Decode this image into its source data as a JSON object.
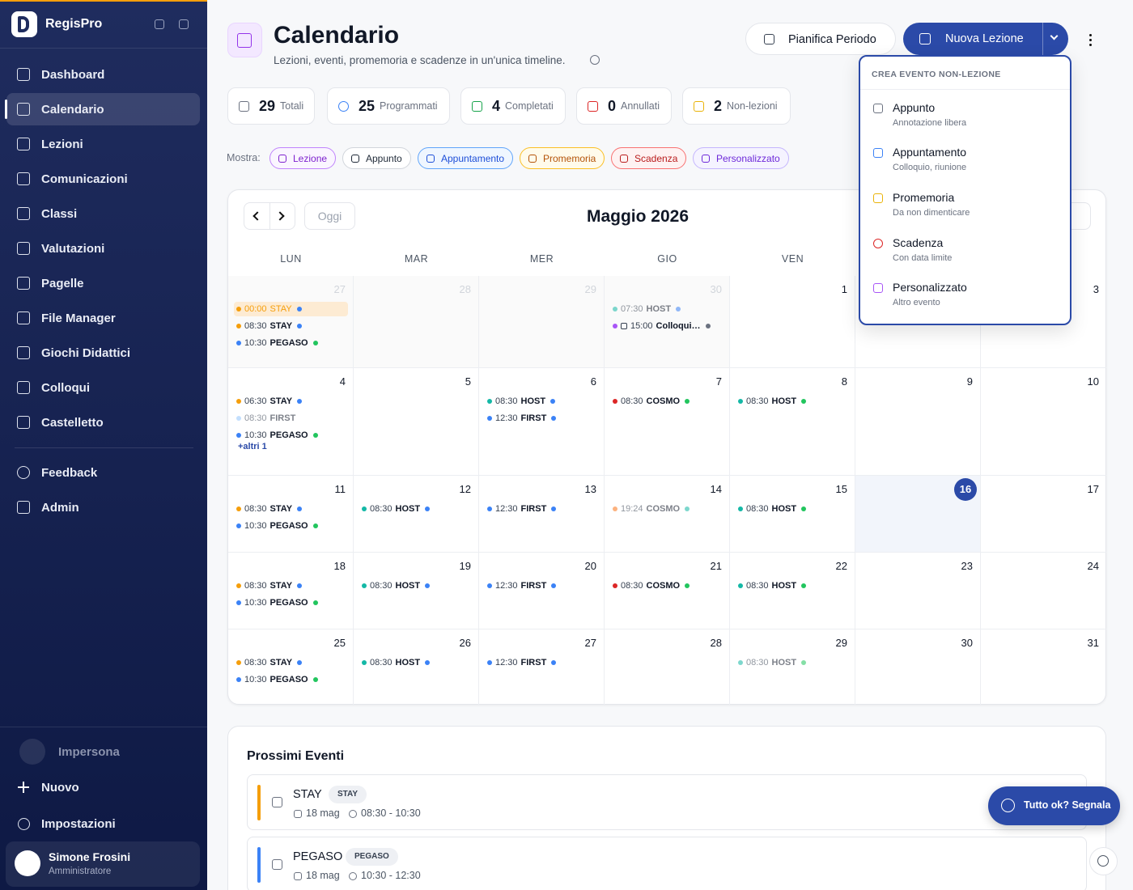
{
  "sidebar": {
    "brand": "RegisPro",
    "nav": [
      "Dashboard",
      "Calendario",
      "Lezioni",
      "Comunicazioni",
      "Classi",
      "Valutazioni",
      "Pagelle",
      "File Manager",
      "Giochi Didattici",
      "Colloqui",
      "Castelletto"
    ],
    "nav2": [
      "Feedback",
      "Admin"
    ],
    "impersonate": "Impersona",
    "new": "Nuovo",
    "settings": "Impostazioni",
    "user": {
      "name": "Simone Frosini",
      "role": "Amministratore"
    }
  },
  "header": {
    "title": "Calendario",
    "subtitle": "Lezioni, eventi, promemoria e scadenze in un'unica timeline.",
    "plan": "Pianifica Periodo",
    "new_lesson": "Nuova Lezione"
  },
  "stats": [
    {
      "value": 29,
      "label": "Totali",
      "color": "#6b7280"
    },
    {
      "value": 25,
      "label": "Programmati",
      "color": "#3b82f6"
    },
    {
      "value": 4,
      "label": "Completati",
      "color": "#16a34a"
    },
    {
      "value": 0,
      "label": "Annullati",
      "color": "#dc2626"
    },
    {
      "value": 2,
      "label": "Non-lezioni",
      "color": "#eab308"
    }
  ],
  "filters": {
    "label": "Mostra:",
    "chips": [
      {
        "label": "Lezione",
        "color": "#7e22ce",
        "bg": "#faf5ff",
        "border": "#c084fc"
      },
      {
        "label": "Appunto",
        "color": "#1f2937",
        "bg": "#ffffff",
        "border": "#d1d5db"
      },
      {
        "label": "Appuntamento",
        "color": "#1d4ed8",
        "bg": "#eff6ff",
        "border": "#60a5fa"
      },
      {
        "label": "Promemoria",
        "color": "#b45309",
        "bg": "#fffbeb",
        "border": "#fbbf24"
      },
      {
        "label": "Scadenza",
        "color": "#b91c1c",
        "bg": "#fef2f2",
        "border": "#f87171"
      },
      {
        "label": "Personalizzato",
        "color": "#6d28d9",
        "bg": "#f5f3ff",
        "border": "#c4b5fd"
      }
    ]
  },
  "calendar": {
    "month": "Maggio 2026",
    "today_btn": "Oggi",
    "weekdays": [
      "LUN",
      "MAR",
      "MER",
      "GIO",
      "VEN"
    ],
    "today": 16,
    "weeks": [
      [
        {
          "day": 27,
          "outside": true,
          "events": [
            {
              "time": "00:00",
              "name": "STAY",
              "lead": "#f59e0b",
              "trail": "#3b82f6",
              "muted": true,
              "highlight": true
            },
            {
              "time": "08:30",
              "name": "STAY",
              "lead": "#f59e0b",
              "trail": "#3b82f6"
            },
            {
              "time": "10:30",
              "name": "PEGASO",
              "lead": "#3b82f6",
              "trail": "#22c55e"
            }
          ]
        },
        {
          "day": 28,
          "outside": true
        },
        {
          "day": 29,
          "outside": true
        },
        {
          "day": 30,
          "outside": true,
          "events": [
            {
              "time": "07:30",
              "name": "HOST",
              "lead": "#14b8a6",
              "trail": "#3b82f6",
              "muted": true
            },
            {
              "time": "15:00",
              "name": "Colloqui…",
              "lead": "#a855f7",
              "trail": "#6b7280",
              "icon": true
            }
          ]
        },
        {
          "day": 1
        },
        {
          "day": null
        },
        {
          "day": 3
        }
      ],
      [
        {
          "day": 4,
          "events": [
            {
              "time": "06:30",
              "name": "STAY",
              "lead": "#f59e0b",
              "trail": "#3b82f6"
            },
            {
              "time": "08:30",
              "name": "FIRST",
              "lead": "#93c5fd",
              "trail": null,
              "muted": true
            },
            {
              "time": "10:30",
              "name": "PEGASO",
              "lead": "#3b82f6",
              "trail": "#22c55e"
            }
          ],
          "more": "+altri 1"
        },
        {
          "day": 5
        },
        {
          "day": 6,
          "events": [
            {
              "time": "08:30",
              "name": "HOST",
              "lead": "#14b8a6",
              "trail": "#3b82f6"
            },
            {
              "time": "12:30",
              "name": "FIRST",
              "lead": "#3b82f6",
              "trail": "#3b82f6"
            }
          ]
        },
        {
          "day": 7,
          "events": [
            {
              "time": "08:30",
              "name": "COSMO",
              "lead": "#dc2626",
              "trail": "#22c55e"
            }
          ]
        },
        {
          "day": 8,
          "events": [
            {
              "time": "08:30",
              "name": "HOST",
              "lead": "#14b8a6",
              "trail": "#22c55e"
            }
          ]
        },
        {
          "day": 9
        },
        {
          "day": 10
        }
      ],
      [
        {
          "day": 11,
          "events": [
            {
              "time": "08:30",
              "name": "STAY",
              "lead": "#f59e0b",
              "trail": "#3b82f6"
            },
            {
              "time": "10:30",
              "name": "PEGASO",
              "lead": "#3b82f6",
              "trail": "#22c55e"
            }
          ]
        },
        {
          "day": 12,
          "events": [
            {
              "time": "08:30",
              "name": "HOST",
              "lead": "#14b8a6",
              "trail": "#3b82f6"
            }
          ]
        },
        {
          "day": 13,
          "events": [
            {
              "time": "12:30",
              "name": "FIRST",
              "lead": "#3b82f6",
              "trail": "#3b82f6"
            }
          ]
        },
        {
          "day": 14,
          "events": [
            {
              "time": "19:24",
              "name": "COSMO",
              "lead": "#f97316",
              "trail": "#14b8a6",
              "muted": true
            }
          ]
        },
        {
          "day": 15,
          "events": [
            {
              "time": "08:30",
              "name": "HOST",
              "lead": "#14b8a6",
              "trail": "#22c55e"
            }
          ]
        },
        {
          "day": 16
        },
        {
          "day": 17
        }
      ],
      [
        {
          "day": 18,
          "events": [
            {
              "time": "08:30",
              "name": "STAY",
              "lead": "#f59e0b",
              "trail": "#3b82f6"
            },
            {
              "time": "10:30",
              "name": "PEGASO",
              "lead": "#3b82f6",
              "trail": "#22c55e"
            }
          ]
        },
        {
          "day": 19,
          "events": [
            {
              "time": "08:30",
              "name": "HOST",
              "lead": "#14b8a6",
              "trail": "#3b82f6"
            }
          ]
        },
        {
          "day": 20,
          "events": [
            {
              "time": "12:30",
              "name": "FIRST",
              "lead": "#3b82f6",
              "trail": "#3b82f6"
            }
          ]
        },
        {
          "day": 21,
          "events": [
            {
              "time": "08:30",
              "name": "COSMO",
              "lead": "#dc2626",
              "trail": "#22c55e"
            }
          ]
        },
        {
          "day": 22,
          "events": [
            {
              "time": "08:30",
              "name": "HOST",
              "lead": "#14b8a6",
              "trail": "#22c55e"
            }
          ]
        },
        {
          "day": 23
        },
        {
          "day": 24
        }
      ],
      [
        {
          "day": 25,
          "events": [
            {
              "time": "08:30",
              "name": "STAY",
              "lead": "#f59e0b",
              "trail": "#3b82f6"
            },
            {
              "time": "10:30",
              "name": "PEGASO",
              "lead": "#3b82f6",
              "trail": "#22c55e"
            }
          ]
        },
        {
          "day": 26,
          "events": [
            {
              "time": "08:30",
              "name": "HOST",
              "lead": "#14b8a6",
              "trail": "#3b82f6"
            }
          ]
        },
        {
          "day": 27,
          "events": [
            {
              "time": "12:30",
              "name": "FIRST",
              "lead": "#3b82f6",
              "trail": "#3b82f6"
            }
          ]
        },
        {
          "day": 28
        },
        {
          "day": 29,
          "events": [
            {
              "time": "08:30",
              "name": "HOST",
              "lead": "#14b8a6",
              "trail": "#22c55e",
              "muted": true
            }
          ]
        },
        {
          "day": 30
        },
        {
          "day": 31
        }
      ]
    ]
  },
  "dropdown": {
    "heading": "CREA EVENTO NON-LEZIONE",
    "items": [
      {
        "title": "Appunto",
        "desc": "Annotazione libera",
        "color": "#6b7280"
      },
      {
        "title": "Appuntamento",
        "desc": "Colloquio, riunione",
        "color": "#3b82f6"
      },
      {
        "title": "Promemoria",
        "desc": "Da non dimenticare",
        "color": "#eab308"
      },
      {
        "title": "Scadenza",
        "desc": "Con data limite",
        "color": "#dc2626"
      },
      {
        "title": "Personalizzato",
        "desc": "Altro evento",
        "color": "#a855f7"
      }
    ]
  },
  "upcoming": {
    "title": "Prossimi Eventi",
    "items": [
      {
        "title": "STAY",
        "tag": "STAY",
        "date": "18 mag",
        "time": "08:30 - 10:30",
        "color": "#f59e0b"
      },
      {
        "title": "PEGASO",
        "tag": "PEGASO",
        "date": "18 mag",
        "time": "10:30 - 12:30",
        "color": "#3b82f6"
      }
    ]
  },
  "feedback_btn": "Tutto ok? Segnala"
}
